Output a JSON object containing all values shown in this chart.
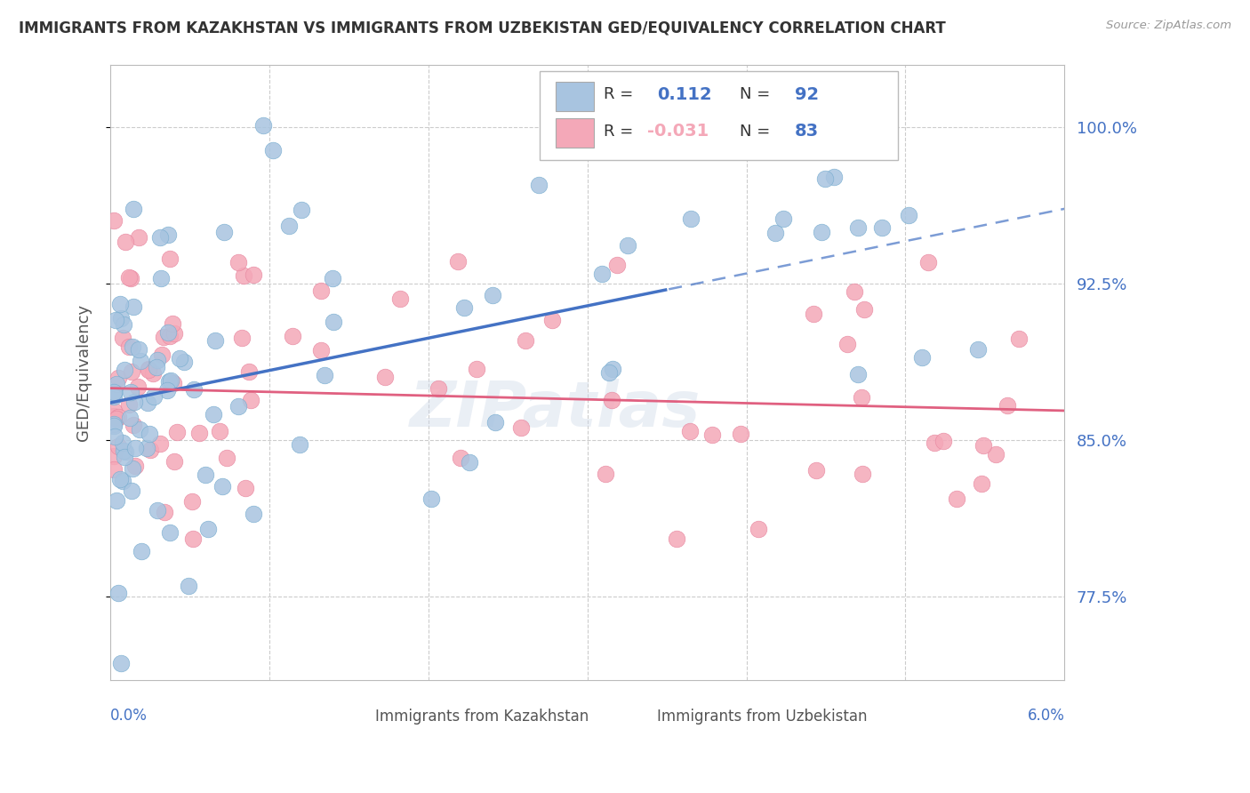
{
  "title": "IMMIGRANTS FROM KAZAKHSTAN VS IMMIGRANTS FROM UZBEKISTAN GED/EQUIVALENCY CORRELATION CHART",
  "source": "Source: ZipAtlas.com",
  "ylabel": "GED/Equivalency",
  "x_min": 0.0,
  "x_max": 6.0,
  "y_min": 0.735,
  "y_max": 1.03,
  "r_kaz": 0.112,
  "n_kaz": 92,
  "r_uzb": -0.031,
  "n_uzb": 83,
  "color_kaz": "#a8c4e0",
  "color_uzb": "#f4a8b8",
  "color_kaz_edge": "#7aaed0",
  "color_uzb_edge": "#e888a0",
  "color_line_kaz": "#4472c4",
  "color_line_uzb": "#e06080",
  "color_axis_blue": "#4472c4",
  "color_title": "#333333",
  "watermark": "ZIPatlas",
  "grid_color": "#cccccc",
  "bg_color": "#ffffff",
  "y_tick_vals": [
    0.775,
    0.85,
    0.925,
    1.0
  ],
  "y_tick_labels": [
    "77.5%",
    "85.0%",
    "92.5%",
    "100.0%"
  ],
  "kaz_line_solid_end": 3.5,
  "uzb_line_end": 6.0,
  "kaz_intercept": 0.868,
  "kaz_slope": 0.0155,
  "uzb_intercept": 0.875,
  "uzb_slope": -0.0018
}
